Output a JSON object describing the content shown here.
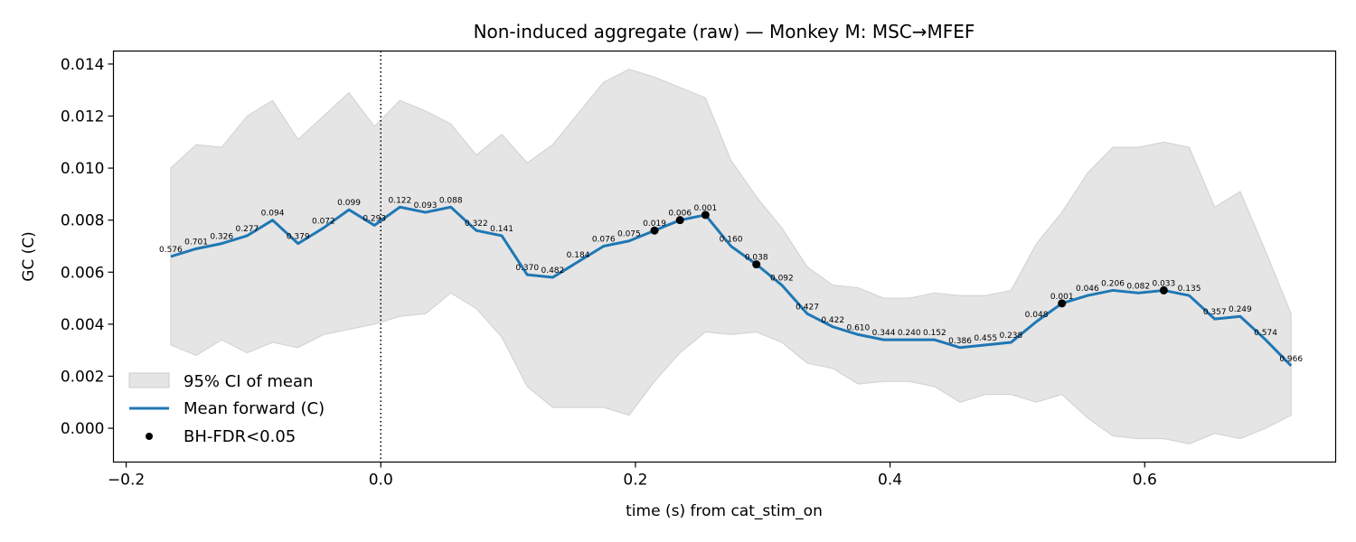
{
  "chart_data": {
    "type": "line",
    "title": "Non-induced aggregate (raw) — Monkey M: MSC→MFEF",
    "xlabel": "time (s) from cat_stim_on",
    "ylabel": "GC (C)",
    "xlim": [
      -0.21,
      0.75
    ],
    "ylim": [
      -0.0013,
      0.0145
    ],
    "x_ticks": [
      -0.2,
      0.0,
      0.2,
      0.4,
      0.6
    ],
    "x_tick_labels": [
      "−0.2",
      "0.0",
      "0.2",
      "0.4",
      "0.6"
    ],
    "y_ticks": [
      0.0,
      0.002,
      0.004,
      0.006,
      0.008,
      0.01,
      0.012,
      0.014
    ],
    "y_tick_labels": [
      "0.000",
      "0.002",
      "0.004",
      "0.006",
      "0.008",
      "0.010",
      "0.012",
      "0.014"
    ],
    "vline_x": 0.0,
    "grid": false,
    "legend_position": "lower-left",
    "legend": [
      "95% CI of mean",
      "Mean forward (C)",
      "BH-FDR<0.05"
    ],
    "colors": {
      "mean": "#1f77b4",
      "ci_fill": "#e5e5e5",
      "ci_edge": "#d0d0d0",
      "significant": "#000000"
    },
    "x": [
      -0.165,
      -0.145,
      -0.125,
      -0.105,
      -0.085,
      -0.065,
      -0.045,
      -0.025,
      -0.005,
      0.015,
      0.035,
      0.055,
      0.075,
      0.095,
      0.115,
      0.135,
      0.155,
      0.175,
      0.195,
      0.215,
      0.235,
      0.255,
      0.275,
      0.295,
      0.315,
      0.335,
      0.355,
      0.375,
      0.395,
      0.415,
      0.435,
      0.455,
      0.475,
      0.495,
      0.515,
      0.535,
      0.555,
      0.575,
      0.595,
      0.615,
      0.635,
      0.655,
      0.675,
      0.695,
      0.715
    ],
    "series": [
      {
        "name": "Mean forward (C)",
        "values": [
          0.0066,
          0.0069,
          0.0071,
          0.0074,
          0.008,
          0.0071,
          0.0077,
          0.0084,
          0.0078,
          0.0085,
          0.0083,
          0.0085,
          0.0076,
          0.0074,
          0.0059,
          0.0058,
          0.0064,
          0.007,
          0.0072,
          0.0076,
          0.008,
          0.0082,
          0.007,
          0.0063,
          0.0055,
          0.0044,
          0.0039,
          0.0036,
          0.0034,
          0.0034,
          0.0034,
          0.0031,
          0.0032,
          0.0033,
          0.0041,
          0.0048,
          0.0051,
          0.0053,
          0.0052,
          0.0053,
          0.0051,
          0.0042,
          0.0043,
          0.0034,
          0.0024
        ]
      }
    ],
    "ci_upper": [
      0.01,
      0.0109,
      0.0108,
      0.012,
      0.0126,
      0.0111,
      0.012,
      0.0129,
      0.0116,
      0.0126,
      0.0122,
      0.0117,
      0.0105,
      0.0113,
      0.0102,
      0.0109,
      0.0121,
      0.0133,
      0.0138,
      0.0135,
      0.0131,
      0.0127,
      0.0103,
      0.0089,
      0.0077,
      0.0062,
      0.0055,
      0.0054,
      0.005,
      0.005,
      0.0052,
      0.0051,
      0.0051,
      0.0053,
      0.0071,
      0.0083,
      0.0098,
      0.0108,
      0.0108,
      0.011,
      0.0108,
      0.0085,
      0.0091,
      0.0068,
      0.0044
    ],
    "ci_lower": [
      0.0032,
      0.0028,
      0.0034,
      0.0029,
      0.0033,
      0.0031,
      0.0036,
      0.0038,
      0.004,
      0.0043,
      0.0044,
      0.0052,
      0.0046,
      0.0035,
      0.0016,
      0.0008,
      0.0008,
      0.0008,
      0.0005,
      0.0018,
      0.0029,
      0.0037,
      0.0036,
      0.0037,
      0.0033,
      0.0025,
      0.0023,
      0.0017,
      0.0018,
      0.0018,
      0.0016,
      0.001,
      0.0013,
      0.0013,
      0.001,
      0.0013,
      0.0004,
      -0.0003,
      -0.0004,
      -0.0004,
      -0.0006,
      -0.0002,
      -0.0004,
      0.0,
      0.0005
    ],
    "p_value_labels": [
      "0.576",
      "0.701",
      "0.326",
      "0.277",
      "0.094",
      "0.379",
      "0.072",
      "0.099",
      "0.293",
      "0.122",
      "0.093",
      "0.088",
      "0.322",
      "0.141",
      "0.370",
      "0.482",
      "0.184",
      "0.076",
      "0.075",
      "0.019",
      "0.006",
      "0.001",
      "0.160",
      "0.038",
      "0.092",
      "0.427",
      "0.422",
      "0.610",
      "0.344",
      "0.240",
      "0.152",
      "0.386",
      "0.455",
      "0.238",
      "0.048",
      "0.001",
      "0.046",
      "0.206",
      "0.082",
      "0.033",
      "0.135",
      "0.357",
      "0.249",
      "0.574",
      "0.966"
    ],
    "significant_x": [
      0.215,
      0.235,
      0.255,
      0.295,
      0.535,
      0.615
    ]
  }
}
